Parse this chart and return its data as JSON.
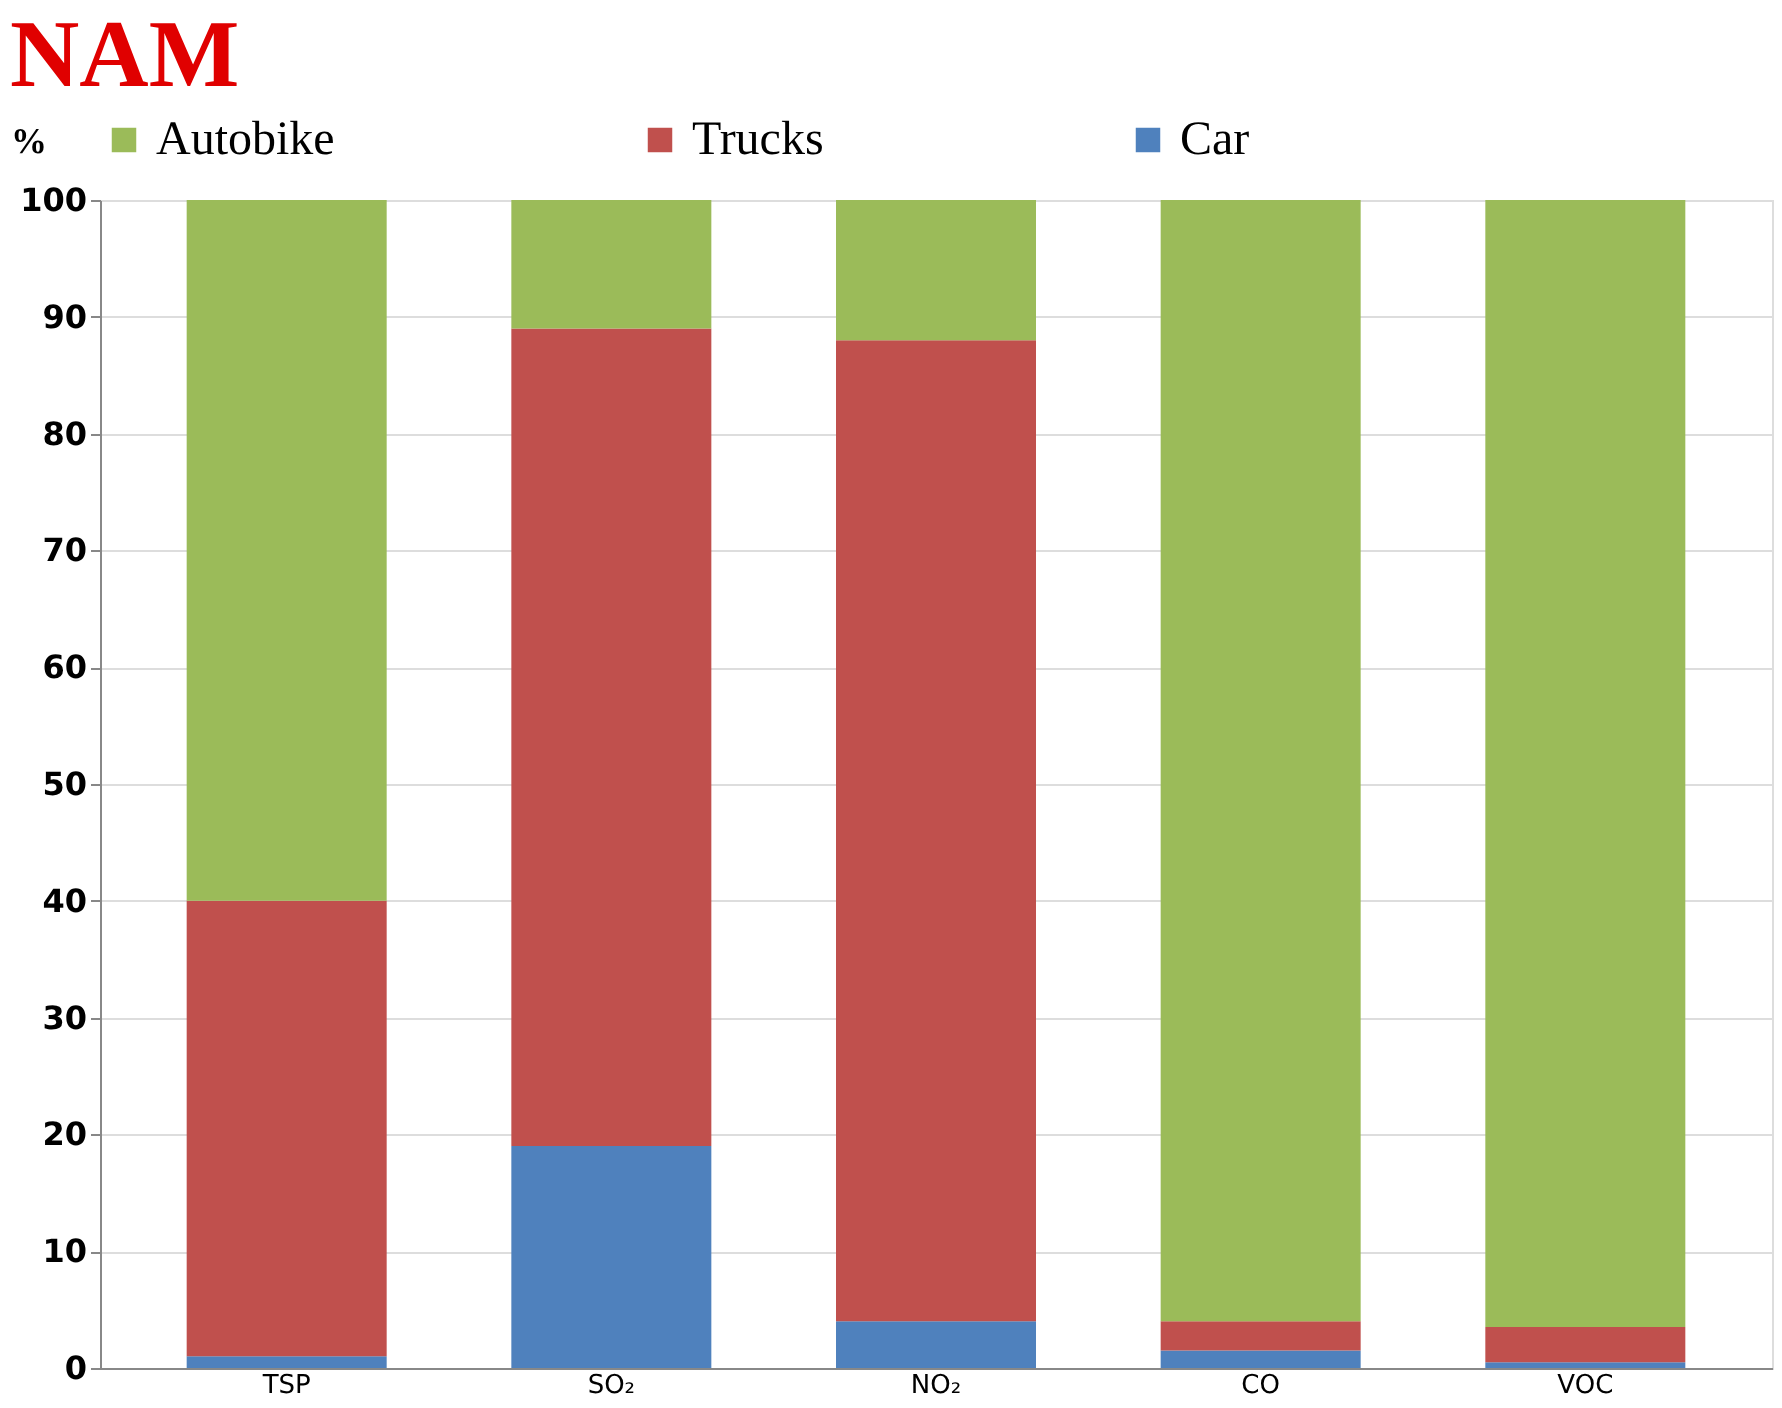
{
  "chart_data": {
    "type": "bar",
    "title": "NAM",
    "ylabel": "%",
    "stacked": true,
    "categories": [
      "TSP",
      "SO₂",
      "NO₂",
      "CO",
      "VOC"
    ],
    "series": [
      {
        "name": "Car",
        "color": "#4f81bd",
        "values": [
          1,
          19,
          4,
          1.5,
          0.5
        ]
      },
      {
        "name": "Trucks",
        "color": "#c0504d",
        "values": [
          39,
          70,
          84,
          2.5,
          3
        ]
      },
      {
        "name": "Autobike",
        "color": "#9bbb59",
        "values": [
          60,
          11,
          12,
          96,
          96.5
        ]
      }
    ],
    "ylim": [
      0,
      100
    ],
    "yticks": [
      0,
      10,
      20,
      30,
      40,
      50,
      60,
      70,
      80,
      90,
      100
    ],
    "grid": "y",
    "legend": "top"
  }
}
